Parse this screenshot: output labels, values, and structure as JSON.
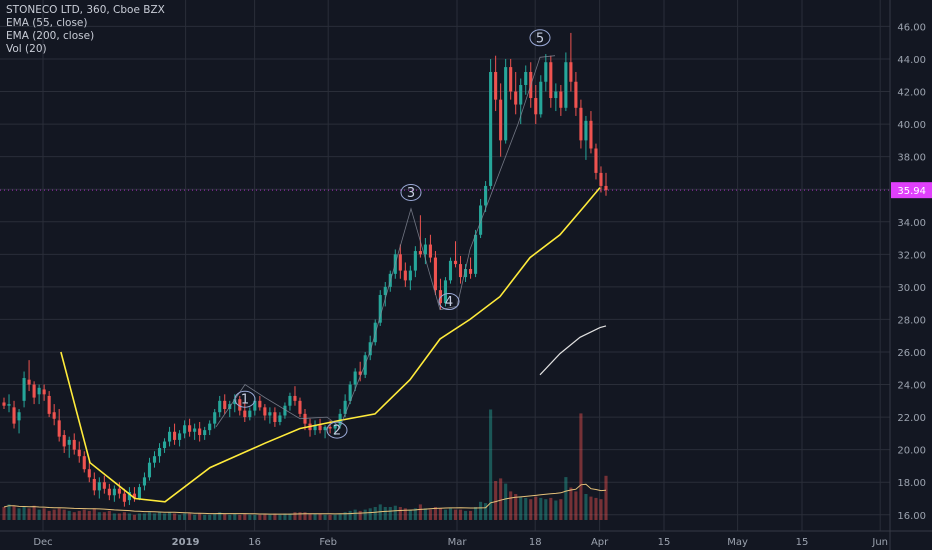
{
  "legend": {
    "symbol_line": "STONECO LTD, 360, Cboe BZX",
    "ema55": "EMA (55, close)",
    "ema200": "EMA (200, close)",
    "vol": "Vol (20)"
  },
  "colors": {
    "background": "#131722",
    "grid": "#2a2e39",
    "up": "#26a69a",
    "down": "#ef5350",
    "ema55": "#ffeb3b",
    "ema200": "#e0e0e0",
    "price_label": "#e040fb",
    "wave": "#8a8f9c",
    "axis_text": "#9ca3af"
  },
  "chart_data": {
    "type": "candlestick",
    "x_axis_ticks": [
      {
        "label": "Dec",
        "day": 0
      },
      {
        "label": "2019",
        "day": 31
      },
      {
        "label": "16",
        "day": 46
      },
      {
        "label": "Feb",
        "day": 62
      },
      {
        "label": "Mar",
        "day": 90
      },
      {
        "label": "18",
        "day": 107
      },
      {
        "label": "Apr",
        "day": 121
      },
      {
        "label": "15",
        "day": 135
      },
      {
        "label": "May",
        "day": 151
      },
      {
        "label": "15",
        "day": 165
      },
      {
        "label": "Jun",
        "day": 182
      }
    ],
    "y_axis_ticks": [
      "16.00",
      "18.00",
      "20.00",
      "22.00",
      "24.00",
      "26.00",
      "28.00",
      "30.00",
      "32.00",
      "34.00",
      "36.00",
      "38.00",
      "40.00",
      "42.00",
      "44.00",
      "46.00"
    ],
    "ylim": [
      15,
      46.7
    ],
    "last_price": "35.94",
    "last_price_value": 35.94,
    "candles": [
      [
        22.9,
        23.2,
        22.5,
        22.7,
        0.1
      ],
      [
        22.7,
        23.4,
        22.3,
        22.8,
        0.12
      ],
      [
        22.6,
        23.0,
        21.3,
        21.6,
        0.11
      ],
      [
        21.8,
        22.5,
        21.0,
        22.3,
        0.09
      ],
      [
        23.0,
        24.8,
        22.6,
        24.4,
        0.1
      ],
      [
        24.3,
        25.5,
        23.6,
        24.0,
        0.09
      ],
      [
        24.0,
        24.2,
        22.8,
        23.2,
        0.11
      ],
      [
        23.4,
        24.0,
        22.8,
        23.8,
        0.08
      ],
      [
        23.7,
        24.0,
        23.0,
        23.4,
        0.09
      ],
      [
        23.3,
        23.6,
        22.0,
        22.2,
        0.07
      ],
      [
        22.3,
        22.8,
        21.5,
        21.9,
        0.08
      ],
      [
        21.8,
        22.5,
        20.5,
        20.8,
        0.09
      ],
      [
        20.9,
        21.2,
        19.8,
        20.2,
        0.08
      ],
      [
        20.3,
        20.8,
        19.5,
        20.6,
        0.07
      ],
      [
        20.6,
        21.0,
        19.7,
        20.0,
        0.06
      ],
      [
        20.0,
        20.5,
        19.2,
        19.6,
        0.07
      ],
      [
        19.6,
        19.9,
        18.6,
        18.8,
        0.08
      ],
      [
        18.8,
        19.3,
        18.0,
        18.3,
        0.07
      ],
      [
        18.2,
        18.6,
        17.2,
        17.5,
        0.09
      ],
      [
        17.5,
        18.3,
        17.0,
        18.0,
        0.06
      ],
      [
        18.0,
        18.4,
        17.3,
        17.6,
        0.06
      ],
      [
        17.6,
        17.9,
        16.9,
        17.2,
        0.07
      ],
      [
        17.2,
        17.8,
        16.8,
        17.6,
        0.05
      ],
      [
        17.6,
        18.0,
        17.0,
        17.3,
        0.05
      ],
      [
        17.3,
        17.6,
        16.5,
        16.8,
        0.06
      ],
      [
        16.9,
        17.7,
        16.6,
        17.4,
        0.05
      ],
      [
        17.3,
        17.7,
        16.8,
        17.0,
        0.04
      ],
      [
        17.0,
        17.9,
        16.9,
        17.7,
        0.05
      ],
      [
        17.8,
        18.6,
        17.5,
        18.3,
        0.05
      ],
      [
        18.3,
        19.5,
        18.1,
        19.2,
        0.06
      ],
      [
        19.2,
        19.9,
        18.9,
        19.6,
        0.05
      ],
      [
        19.6,
        20.4,
        19.2,
        20.1,
        0.06
      ],
      [
        20.1,
        20.7,
        19.8,
        20.5,
        0.05
      ],
      [
        20.5,
        21.4,
        20.2,
        21.1,
        0.06
      ],
      [
        21.1,
        21.6,
        20.3,
        20.6,
        0.05
      ],
      [
        20.6,
        21.2,
        20.2,
        21.0,
        0.04
      ],
      [
        21.0,
        21.8,
        20.7,
        21.5,
        0.05
      ],
      [
        21.5,
        21.9,
        20.8,
        21.1,
        0.05
      ],
      [
        21.1,
        21.6,
        20.6,
        21.3,
        0.04
      ],
      [
        21.3,
        21.7,
        20.5,
        20.9,
        0.05
      ],
      [
        20.9,
        21.4,
        20.6,
        21.2,
        0.04
      ],
      [
        21.2,
        21.8,
        20.9,
        21.6,
        0.04
      ],
      [
        21.6,
        22.5,
        21.3,
        22.3,
        0.05
      ],
      [
        22.3,
        23.3,
        22.0,
        23.0,
        0.06
      ],
      [
        23.0,
        23.4,
        22.2,
        22.5,
        0.05
      ],
      [
        22.5,
        23.0,
        22.0,
        22.8,
        0.04
      ],
      [
        22.8,
        23.4,
        22.3,
        23.1,
        0.05
      ],
      [
        23.1,
        23.3,
        22.1,
        22.4,
        0.04
      ],
      [
        22.4,
        22.9,
        21.7,
        22.0,
        0.05
      ],
      [
        22.0,
        22.6,
        21.8,
        22.4,
        0.04
      ],
      [
        22.4,
        23.2,
        22.1,
        23.0,
        0.04
      ],
      [
        23.0,
        23.3,
        22.4,
        22.6,
        0.04
      ],
      [
        22.6,
        22.8,
        21.8,
        22.1,
        0.05
      ],
      [
        22.1,
        22.6,
        21.6,
        22.3,
        0.04
      ],
      [
        22.3,
        22.6,
        21.4,
        21.7,
        0.05
      ],
      [
        21.7,
        22.3,
        21.5,
        22.1,
        0.04
      ],
      [
        22.1,
        22.9,
        21.9,
        22.7,
        0.05
      ],
      [
        22.7,
        23.5,
        22.4,
        23.3,
        0.05
      ],
      [
        23.3,
        23.9,
        22.7,
        23.0,
        0.06
      ],
      [
        23.0,
        23.2,
        22.0,
        22.2,
        0.06
      ],
      [
        22.2,
        22.5,
        21.2,
        21.6,
        0.06
      ],
      [
        21.6,
        21.9,
        20.8,
        21.2,
        0.05
      ],
      [
        21.2,
        21.8,
        20.9,
        21.5,
        0.05
      ],
      [
        21.5,
        21.9,
        21.0,
        21.2,
        0.05
      ],
      [
        21.2,
        21.5,
        20.7,
        21.4,
        0.04
      ],
      [
        21.4,
        21.8,
        21.0,
        21.3,
        0.04
      ],
      [
        21.3,
        21.6,
        20.9,
        21.5,
        0.04
      ],
      [
        21.5,
        22.5,
        21.3,
        22.2,
        0.05
      ],
      [
        22.2,
        23.4,
        22.0,
        23.0,
        0.06
      ],
      [
        23.0,
        24.2,
        22.8,
        24.0,
        0.07
      ],
      [
        24.0,
        25.0,
        23.6,
        24.8,
        0.08
      ],
      [
        24.8,
        25.4,
        24.2,
        24.6,
        0.07
      ],
      [
        24.6,
        26.0,
        24.4,
        25.8,
        0.08
      ],
      [
        25.8,
        27.0,
        25.5,
        26.6,
        0.09
      ],
      [
        26.6,
        28.0,
        26.4,
        27.8,
        0.1
      ],
      [
        27.8,
        29.8,
        27.6,
        29.5,
        0.12
      ],
      [
        29.5,
        30.3,
        28.8,
        30.0,
        0.1
      ],
      [
        30.0,
        31.0,
        29.7,
        30.8,
        0.1
      ],
      [
        30.8,
        32.3,
        30.5,
        32.0,
        0.11
      ],
      [
        32.0,
        32.6,
        30.5,
        31.0,
        0.1
      ],
      [
        31.0,
        31.5,
        30.0,
        30.4,
        0.09
      ],
      [
        30.4,
        31.3,
        29.8,
        31.0,
        0.08
      ],
      [
        31.0,
        32.5,
        30.6,
        32.2,
        0.09
      ],
      [
        32.2,
        34.4,
        31.8,
        32.0,
        0.12
      ],
      [
        32.0,
        33.0,
        31.4,
        32.6,
        0.09
      ],
      [
        32.6,
        33.2,
        31.5,
        31.8,
        0.08
      ],
      [
        31.8,
        32.2,
        29.5,
        29.8,
        0.1
      ],
      [
        29.8,
        30.5,
        28.6,
        29.0,
        0.09
      ],
      [
        29.0,
        30.6,
        28.8,
        30.4,
        0.08
      ],
      [
        30.4,
        31.8,
        30.2,
        31.6,
        0.09
      ],
      [
        31.6,
        32.8,
        31.2,
        31.4,
        0.08
      ],
      [
        31.4,
        31.9,
        30.2,
        30.6,
        0.08
      ],
      [
        30.6,
        31.4,
        30.3,
        31.1,
        0.07
      ],
      [
        31.1,
        31.8,
        30.5,
        30.8,
        0.07
      ],
      [
        30.8,
        33.5,
        30.6,
        33.2,
        0.1
      ],
      [
        33.2,
        35.4,
        33.0,
        35.0,
        0.14
      ],
      [
        35.0,
        36.5,
        34.6,
        36.2,
        0.13
      ],
      [
        36.2,
        44.0,
        36.0,
        43.2,
        0.85
      ],
      [
        43.2,
        44.2,
        40.8,
        41.5,
        0.3
      ],
      [
        41.5,
        42.5,
        38.0,
        39.0,
        0.32
      ],
      [
        39.0,
        44.0,
        38.8,
        43.5,
        0.28
      ],
      [
        43.5,
        44.0,
        41.5,
        42.0,
        0.22
      ],
      [
        42.0,
        43.2,
        40.6,
        41.2,
        0.2
      ],
      [
        41.2,
        42.8,
        40.0,
        42.4,
        0.18
      ],
      [
        42.4,
        43.6,
        41.8,
        43.2,
        0.17
      ],
      [
        43.2,
        43.8,
        41.0,
        41.6,
        0.16
      ],
      [
        41.6,
        42.4,
        40.0,
        40.6,
        0.18
      ],
      [
        40.6,
        43.0,
        40.4,
        42.6,
        0.17
      ],
      [
        42.6,
        44.3,
        42.0,
        43.8,
        0.16
      ],
      [
        43.8,
        44.2,
        41.0,
        41.6,
        0.17
      ],
      [
        41.6,
        42.5,
        40.8,
        42.0,
        0.15
      ],
      [
        42.0,
        42.4,
        40.5,
        41.0,
        0.16
      ],
      [
        41.0,
        44.4,
        40.8,
        43.8,
        0.33
      ],
      [
        43.8,
        45.6,
        42.0,
        42.6,
        0.25
      ],
      [
        42.6,
        43.2,
        40.5,
        41.0,
        0.22
      ],
      [
        41.0,
        41.5,
        38.5,
        39.0,
        0.82
      ],
      [
        39.0,
        40.5,
        37.8,
        40.2,
        0.2
      ],
      [
        40.2,
        40.8,
        38.2,
        38.5,
        0.18
      ],
      [
        38.5,
        38.8,
        36.6,
        37.0,
        0.17
      ],
      [
        37.0,
        37.4,
        35.8,
        36.2,
        0.16
      ],
      [
        36.2,
        37.0,
        35.6,
        35.94,
        0.34
      ]
    ],
    "ema55_points": [
      [
        60.9,
        26.0
      ],
      [
        90,
        19.2
      ],
      [
        135,
        17.0
      ],
      [
        165,
        16.8
      ],
      [
        210,
        18.9
      ],
      [
        265,
        20.4
      ],
      [
        300,
        21.3
      ],
      [
        340,
        21.8
      ],
      [
        375,
        22.2
      ],
      [
        410,
        24.3
      ],
      [
        440,
        26.8
      ],
      [
        470,
        28.0
      ],
      [
        500,
        29.4
      ],
      [
        530,
        31.8
      ],
      [
        560,
        33.2
      ],
      [
        585,
        35.0
      ],
      [
        600,
        36.1
      ]
    ],
    "ema200_points": [
      [
        540,
        24.6
      ],
      [
        560,
        25.9
      ],
      [
        580,
        26.9
      ],
      [
        600,
        27.5
      ],
      [
        606,
        27.6
      ]
    ],
    "waves": [
      {
        "label": "1",
        "day": 245,
        "value": 23.1
      },
      {
        "label": "2",
        "day": 337,
        "value": 21.2
      },
      {
        "label": "3",
        "day": 411,
        "value": 35.8
      },
      {
        "label": "4",
        "day": 449,
        "value": 29.1
      },
      {
        "label": "5",
        "day": 540,
        "value": 45.3
      }
    ],
    "wave_path": [
      [
        216,
        21.4
      ],
      [
        245,
        24.0
      ],
      [
        265,
        23.2
      ],
      [
        300,
        21.9
      ],
      [
        327,
        22.0
      ],
      [
        340,
        21.4
      ],
      [
        370,
        26.0
      ],
      [
        411,
        34.8
      ],
      [
        440,
        28.6
      ],
      [
        457,
        28.8
      ],
      [
        470,
        32.3
      ],
      [
        518,
        40.0
      ],
      [
        540,
        44.1
      ],
      [
        555,
        44.2
      ]
    ]
  }
}
